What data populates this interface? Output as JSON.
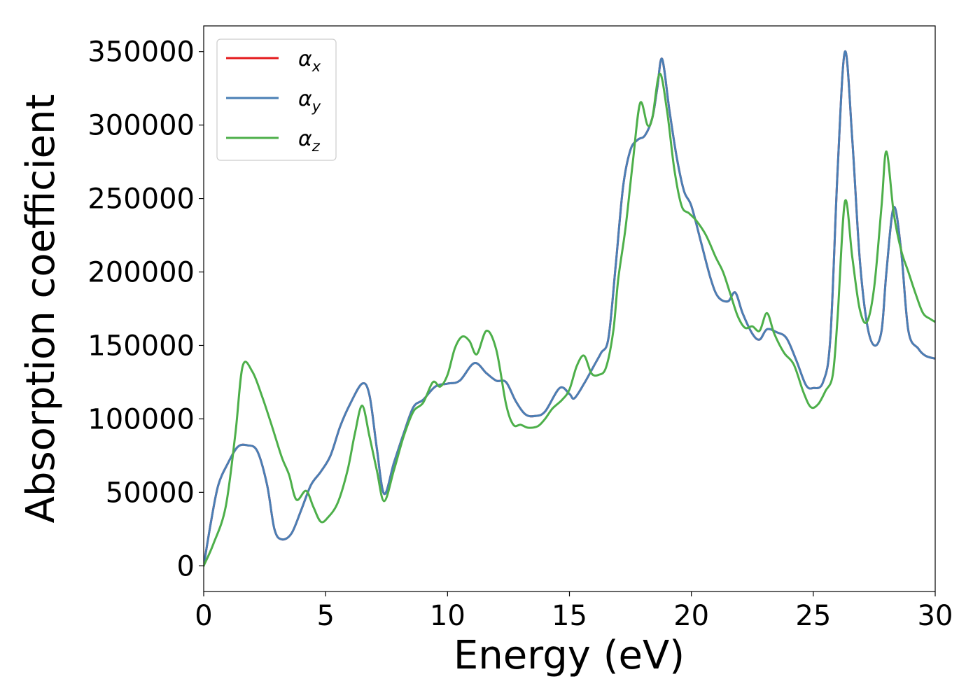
{
  "chart_data": {
    "type": "line",
    "xlabel": "Energy (eV)",
    "ylabel": "Absorption coefficient",
    "xlim": [
      0,
      30
    ],
    "ylim": [
      -17500,
      367500
    ],
    "xticks": [
      0,
      5,
      10,
      15,
      20,
      25,
      30
    ],
    "yticks": [
      0,
      50000,
      100000,
      150000,
      200000,
      250000,
      300000,
      350000
    ],
    "grid": false,
    "legend_position": "top-left",
    "series": [
      {
        "name": "α",
        "subscript": "x",
        "color": "#e41a1c",
        "x": [
          0,
          0.3,
          0.6,
          1.0,
          1.4,
          1.8,
          2.2,
          2.6,
          2.9,
          3.2,
          3.6,
          4.0,
          4.4,
          4.8,
          5.2,
          5.6,
          6.0,
          6.5,
          6.8,
          7.1,
          7.4,
          7.8,
          8.2,
          8.6,
          9.0,
          9.5,
          10.0,
          10.5,
          11.1,
          11.6,
          12.0,
          12.4,
          12.8,
          13.2,
          13.6,
          14.0,
          14.6,
          15.0,
          15.2,
          15.6,
          16.0,
          16.3,
          16.6,
          16.9,
          17.2,
          17.5,
          17.8,
          18.1,
          18.4,
          18.6,
          18.8,
          19.1,
          19.4,
          19.7,
          20.0,
          20.4,
          20.8,
          21.1,
          21.5,
          21.8,
          22.1,
          22.5,
          22.8,
          23.1,
          23.5,
          23.9,
          24.3,
          24.7,
          25.0,
          25.4,
          25.7,
          26.0,
          26.3,
          26.6,
          26.9,
          27.2,
          27.5,
          27.8,
          28.0,
          28.3,
          28.6,
          28.9,
          29.3,
          29.6,
          30.0
        ],
        "values": [
          0,
          30000,
          55000,
          70000,
          81000,
          82000,
          78000,
          55000,
          25000,
          18000,
          22000,
          38000,
          55000,
          64000,
          75000,
          95000,
          110000,
          124000,
          116000,
          80000,
          49000,
          70000,
          90000,
          108000,
          113000,
          122000,
          124000,
          126000,
          138000,
          131000,
          126000,
          125000,
          112000,
          103000,
          102000,
          105000,
          121000,
          117000,
          114000,
          124000,
          136000,
          145000,
          155000,
          205000,
          258000,
          283000,
          290000,
          293000,
          305000,
          325000,
          345000,
          310000,
          278000,
          255000,
          245000,
          220000,
          195000,
          183000,
          180000,
          186000,
          172000,
          158000,
          154000,
          161000,
          159000,
          155000,
          140000,
          123000,
          121000,
          125000,
          155000,
          270000,
          350000,
          290000,
          210000,
          165000,
          150000,
          160000,
          200000,
          244000,
          215000,
          160000,
          148000,
          143000,
          141000
        ]
      },
      {
        "name": "α",
        "subscript": "y",
        "color": "#4a7fb5",
        "x": [
          0,
          0.3,
          0.6,
          1.0,
          1.4,
          1.8,
          2.2,
          2.6,
          2.9,
          3.2,
          3.6,
          4.0,
          4.4,
          4.8,
          5.2,
          5.6,
          6.0,
          6.5,
          6.8,
          7.1,
          7.4,
          7.8,
          8.2,
          8.6,
          9.0,
          9.5,
          10.0,
          10.5,
          11.1,
          11.6,
          12.0,
          12.4,
          12.8,
          13.2,
          13.6,
          14.0,
          14.6,
          15.0,
          15.2,
          15.6,
          16.0,
          16.3,
          16.6,
          16.9,
          17.2,
          17.5,
          17.8,
          18.1,
          18.4,
          18.6,
          18.8,
          19.1,
          19.4,
          19.7,
          20.0,
          20.4,
          20.8,
          21.1,
          21.5,
          21.8,
          22.1,
          22.5,
          22.8,
          23.1,
          23.5,
          23.9,
          24.3,
          24.7,
          25.0,
          25.4,
          25.7,
          26.0,
          26.3,
          26.6,
          26.9,
          27.2,
          27.5,
          27.8,
          28.0,
          28.3,
          28.6,
          28.9,
          29.3,
          29.6,
          30.0
        ],
        "values": [
          0,
          30000,
          55000,
          70000,
          81000,
          82000,
          78000,
          55000,
          25000,
          18000,
          22000,
          38000,
          55000,
          64000,
          75000,
          95000,
          110000,
          124000,
          116000,
          80000,
          49000,
          70000,
          90000,
          108000,
          113000,
          122000,
          124000,
          126000,
          138000,
          131000,
          126000,
          125000,
          112000,
          103000,
          102000,
          105000,
          121000,
          117000,
          114000,
          124000,
          136000,
          145000,
          155000,
          205000,
          258000,
          283000,
          290000,
          293000,
          305000,
          325000,
          345000,
          310000,
          278000,
          255000,
          245000,
          220000,
          195000,
          183000,
          180000,
          186000,
          172000,
          158000,
          154000,
          161000,
          159000,
          155000,
          140000,
          123000,
          121000,
          125000,
          155000,
          270000,
          350000,
          290000,
          210000,
          165000,
          150000,
          160000,
          200000,
          244000,
          215000,
          160000,
          148000,
          143000,
          141000
        ]
      },
      {
        "name": "α",
        "subscript": "z",
        "color": "#4daf4a",
        "x": [
          0,
          0.4,
          0.9,
          1.3,
          1.6,
          2.0,
          2.4,
          2.8,
          3.2,
          3.5,
          3.8,
          4.2,
          4.5,
          4.8,
          5.1,
          5.5,
          5.9,
          6.2,
          6.5,
          6.8,
          7.1,
          7.4,
          7.8,
          8.2,
          8.6,
          9.0,
          9.4,
          9.7,
          10.0,
          10.3,
          10.6,
          10.9,
          11.2,
          11.6,
          12.0,
          12.4,
          12.7,
          13.0,
          13.3,
          13.7,
          14.0,
          14.3,
          14.7,
          15.0,
          15.3,
          15.6,
          15.9,
          16.2,
          16.5,
          16.8,
          17.0,
          17.3,
          17.6,
          17.9,
          18.2,
          18.4,
          18.7,
          19.0,
          19.3,
          19.6,
          19.9,
          20.2,
          20.6,
          21.0,
          21.3,
          21.6,
          21.9,
          22.2,
          22.5,
          22.8,
          23.1,
          23.4,
          23.8,
          24.2,
          24.6,
          24.9,
          25.2,
          25.5,
          25.8,
          26.0,
          26.3,
          26.6,
          26.9,
          27.2,
          27.5,
          27.8,
          28.0,
          28.3,
          28.6,
          28.9,
          29.2,
          29.5,
          29.8,
          30.0
        ],
        "values": [
          0,
          15000,
          40000,
          90000,
          136000,
          132000,
          115000,
          95000,
          74000,
          62000,
          45000,
          51000,
          40000,
          30000,
          33000,
          43000,
          65000,
          90000,
          109000,
          88000,
          65000,
          44000,
          65000,
          88000,
          105000,
          111000,
          125000,
          122000,
          130000,
          148000,
          156000,
          153000,
          144000,
          160000,
          147000,
          110000,
          96000,
          96000,
          94000,
          95000,
          100000,
          107000,
          113000,
          120000,
          136000,
          143000,
          131000,
          130000,
          135000,
          160000,
          195000,
          230000,
          275000,
          315000,
          300000,
          305000,
          335000,
          310000,
          270000,
          245000,
          240000,
          235000,
          225000,
          210000,
          200000,
          185000,
          170000,
          162000,
          163000,
          160000,
          172000,
          158000,
          145000,
          137000,
          118000,
          108000,
          110000,
          119000,
          130000,
          170000,
          248000,
          210000,
          175000,
          166000,
          190000,
          245000,
          282000,
          240000,
          215000,
          200000,
          185000,
          172000,
          168000,
          166000
        ]
      }
    ]
  }
}
